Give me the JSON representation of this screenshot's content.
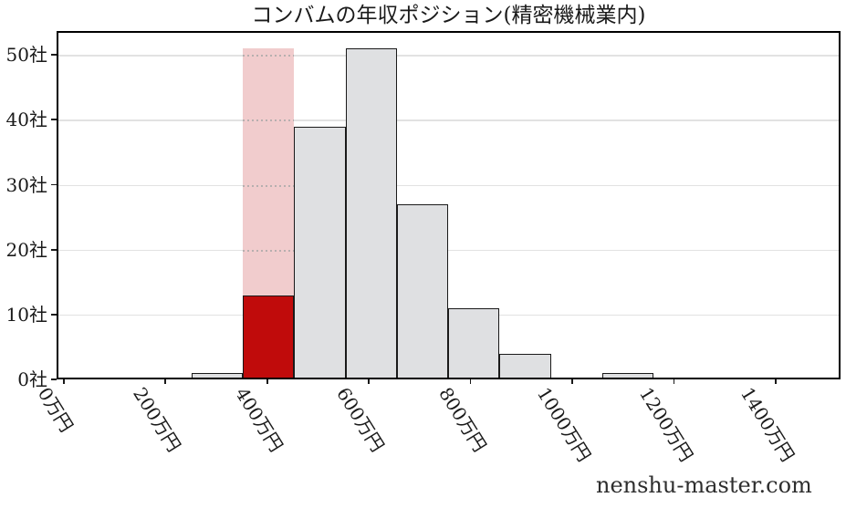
{
  "watermark": "nenshu-master.com",
  "chart_data": {
    "type": "bar",
    "subtype": "histogram",
    "title": "コンバムの年収ポジション(精密機械業内)",
    "x_unit": "万円",
    "y_unit": "社",
    "x_tick_values": [
      0,
      200,
      400,
      600,
      800,
      1000,
      1200,
      1400
    ],
    "x_tick_labels": [
      "0万円",
      "200万円",
      "400万円",
      "600万円",
      "800万円",
      "1000万円",
      "1200万円",
      "1400万円"
    ],
    "y_tick_values": [
      0,
      10,
      20,
      30,
      40,
      50
    ],
    "y_tick_labels": [
      "0社",
      "10社",
      "20社",
      "30社",
      "40社",
      "50社"
    ],
    "xlim": [
      -14,
      1529
    ],
    "ylim": [
      0,
      53.7
    ],
    "grid": "horizontal",
    "bins": [
      {
        "range": [
          251,
          352
        ],
        "count": 1,
        "highlight": false
      },
      {
        "range": [
          352,
          453
        ],
        "count": 13,
        "highlight": true
      },
      {
        "range": [
          453,
          554
        ],
        "count": 39,
        "highlight": false
      },
      {
        "range": [
          554,
          655
        ],
        "count": 51,
        "highlight": false
      },
      {
        "range": [
          655,
          756
        ],
        "count": 27,
        "highlight": false
      },
      {
        "range": [
          756,
          857
        ],
        "count": 11,
        "highlight": false
      },
      {
        "range": [
          857,
          958
        ],
        "count": 4,
        "highlight": false
      },
      {
        "range": [
          958,
          1059
        ],
        "count": 0,
        "highlight": false
      },
      {
        "range": [
          1059,
          1160
        ],
        "count": 1,
        "highlight": false
      }
    ],
    "highlight_band": {
      "range": [
        352,
        453
      ],
      "top": 51
    },
    "colors": {
      "bar_fill": "#dfe0e2",
      "bar_edge": "#1a1a1a",
      "highlight_bar_fill": "#c00b0b",
      "highlight_band_fill": "#f1cccd",
      "grid": "#e2e2e2",
      "axis": "#000000",
      "text": "#1a1a1a"
    }
  }
}
